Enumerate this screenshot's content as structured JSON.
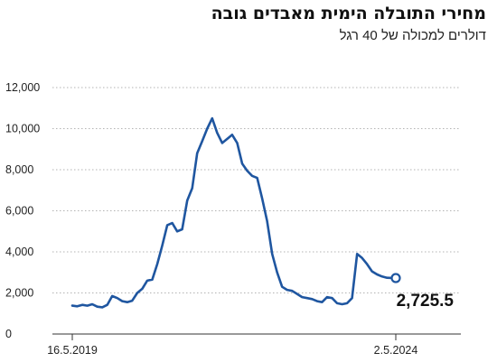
{
  "chart_data": {
    "type": "line",
    "title": "מחירי התובלה הימית מאבדים גובה",
    "subtitle": "דולרים למכולה של 40 רגל",
    "xlabel": "",
    "ylabel": "",
    "ylim": [
      0,
      12000
    ],
    "yticks": [
      0,
      2000,
      4000,
      6000,
      8000,
      10000,
      12000
    ],
    "ytick_labels": [
      "0",
      "2,000",
      "4,000",
      "6,000",
      "8,000",
      "10,000",
      "12,000"
    ],
    "grid": "horizontal dotted",
    "x_tick_labels": [
      "16.5.2019",
      "2.5.2024"
    ],
    "line_color": "#1f56a0",
    "series": [
      {
        "x": [
          "2019-05-16",
          "2019-06-13",
          "2019-07-11",
          "2019-08-08",
          "2019-09-05",
          "2019-10-03",
          "2019-10-31",
          "2019-11-28",
          "2019-12-26",
          "2020-01-23",
          "2020-02-20",
          "2020-03-19",
          "2020-04-16",
          "2020-05-14",
          "2020-06-11",
          "2020-07-09",
          "2020-08-06",
          "2020-09-03",
          "2020-10-01",
          "2020-10-29",
          "2020-11-26",
          "2020-12-24",
          "2021-01-21",
          "2021-02-18",
          "2021-03-18",
          "2021-04-15",
          "2021-05-13",
          "2021-06-10",
          "2021-07-08",
          "2021-08-05",
          "2021-09-02",
          "2021-09-30",
          "2021-10-28",
          "2021-11-25",
          "2021-12-23",
          "2022-01-20",
          "2022-02-17",
          "2022-03-17",
          "2022-04-14",
          "2022-05-12",
          "2022-06-09",
          "2022-07-07",
          "2022-08-04",
          "2022-09-01",
          "2022-09-29",
          "2022-10-27",
          "2022-11-24",
          "2022-12-22",
          "2023-01-19",
          "2023-02-16",
          "2023-03-16",
          "2023-04-13",
          "2023-05-11",
          "2023-06-08",
          "2023-07-06",
          "2023-08-03",
          "2023-08-31",
          "2023-09-28",
          "2023-10-26",
          "2023-11-23",
          "2023-12-21",
          "2024-01-18",
          "2024-02-15",
          "2024-03-14",
          "2024-04-11",
          "2024-05-02"
        ],
        "values": [
          1380,
          1350,
          1420,
          1380,
          1450,
          1330,
          1300,
          1420,
          1850,
          1750,
          1600,
          1550,
          1620,
          2000,
          2200,
          2600,
          2650,
          3400,
          4300,
          5300,
          5400,
          5000,
          5100,
          6500,
          7100,
          8800,
          9400,
          10000,
          10500,
          9800,
          9300,
          9500,
          9700,
          9300,
          8300,
          7950,
          7700,
          7600,
          6600,
          5500,
          3900,
          3000,
          2300,
          2150,
          2100,
          1950,
          1800,
          1750,
          1700,
          1600,
          1550,
          1800,
          1750,
          1500,
          1450,
          1500,
          1750,
          3900,
          3700,
          3400,
          3050,
          2900,
          2800,
          2740,
          2730,
          2725.5
        ]
      }
    ],
    "last_value_label": "2,725.5"
  }
}
